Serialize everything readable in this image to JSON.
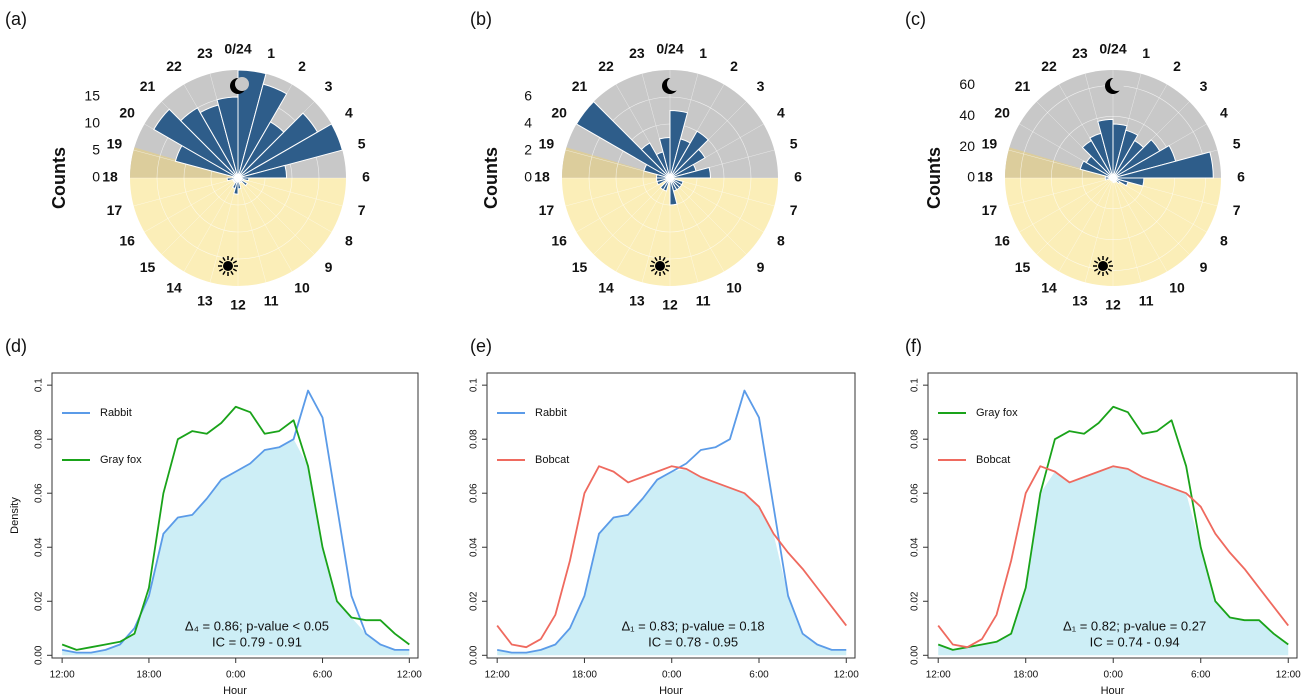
{
  "chart_data": [
    {
      "type": "polar_bar",
      "label": "(a)",
      "ylabel": "Counts",
      "color": "#2e5d8a",
      "categories": [
        "0/24",
        "1",
        "2",
        "3",
        "4",
        "5",
        "6",
        "7",
        "8",
        "9",
        "10",
        "11",
        "12",
        "13",
        "14",
        "15",
        "16",
        "17",
        "18",
        "19",
        "20",
        "21",
        "22",
        "23"
      ],
      "values": [
        20,
        18,
        12,
        17,
        20,
        9,
        2,
        1,
        2,
        1,
        0,
        2,
        3,
        2,
        1,
        1,
        1,
        2,
        1,
        12,
        18,
        15,
        14,
        15
      ],
      "ylim": [
        0,
        20
      ],
      "yticks": [
        0,
        5,
        10,
        15
      ]
    },
    {
      "type": "polar_bar",
      "label": "(b)",
      "ylabel": "Counts",
      "color": "#2e5d8a",
      "categories": [
        "0/24",
        "1",
        "2",
        "3",
        "4",
        "5",
        "6",
        "7",
        "8",
        "9",
        "10",
        "11",
        "12",
        "13",
        "14",
        "15",
        "16",
        "17",
        "18",
        "19",
        "20",
        "21",
        "22",
        "23"
      ],
      "values": [
        5,
        3,
        4,
        3,
        2,
        3,
        0,
        1,
        1,
        1,
        1,
        2,
        0,
        1,
        1,
        0,
        1,
        1,
        1,
        2,
        8,
        3,
        2,
        3
      ],
      "ylim": [
        0,
        8
      ],
      "yticks": [
        0,
        2,
        4,
        6
      ]
    },
    {
      "type": "polar_bar",
      "label": "(c)",
      "ylabel": "Counts",
      "color": "#2e5d8a",
      "categories": [
        "0/24",
        "1",
        "2",
        "3",
        "4",
        "5",
        "6",
        "7",
        "8",
        "9",
        "10",
        "11",
        "12",
        "13",
        "14",
        "15",
        "16",
        "17",
        "18",
        "19",
        "20",
        "21",
        "22",
        "23"
      ],
      "values": [
        35,
        32,
        28,
        35,
        42,
        65,
        20,
        10,
        5,
        3,
        2,
        3,
        2,
        2,
        2,
        2,
        2,
        5,
        5,
        22,
        20,
        28,
        30,
        38
      ],
      "ylim": [
        0,
        70
      ],
      "yticks": [
        0,
        20,
        40,
        60
      ]
    },
    {
      "type": "line",
      "label": "(d)",
      "xlabel": "Hour",
      "ylabel": "Density",
      "overlap_color": "#cdeef6",
      "x": [
        -12,
        -11,
        -10,
        -9,
        -8,
        -7,
        -6,
        -5,
        -4,
        -3,
        -2,
        -1,
        0,
        1,
        2,
        3,
        4,
        5,
        6,
        7,
        8,
        9,
        10,
        11,
        12
      ],
      "series": [
        {
          "name": "Rabbit",
          "color": "#5b9be8",
          "values": [
            0.002,
            0.001,
            0.001,
            0.002,
            0.004,
            0.01,
            0.022,
            0.045,
            0.051,
            0.052,
            0.058,
            0.065,
            0.068,
            0.071,
            0.076,
            0.077,
            0.08,
            0.098,
            0.088,
            0.055,
            0.022,
            0.008,
            0.004,
            0.002,
            0.002
          ]
        },
        {
          "name": "Gray fox",
          "color": "#1aa31a",
          "values": [
            0.004,
            0.002,
            0.003,
            0.004,
            0.005,
            0.008,
            0.025,
            0.06,
            0.08,
            0.083,
            0.082,
            0.086,
            0.092,
            0.09,
            0.082,
            0.083,
            0.087,
            0.07,
            0.04,
            0.02,
            0.014,
            0.013,
            0.013,
            0.008,
            0.004
          ]
        }
      ],
      "xlim": [
        -12.7,
        12.6
      ],
      "xticks": [
        {
          "value": -12,
          "label": "12:00"
        },
        {
          "value": -6,
          "label": "18:00"
        },
        {
          "value": 0,
          "label": "0:00"
        },
        {
          "value": 6,
          "label": "6:00"
        },
        {
          "value": 12,
          "label": "12:00"
        }
      ],
      "ylim": [
        -0.001,
        0.1045
      ],
      "yticks": [
        {
          "value": 0,
          "label": "0.00"
        },
        {
          "value": 0.02,
          "label": "0.02"
        },
        {
          "value": 0.04,
          "label": "0.04"
        },
        {
          "value": 0.06,
          "label": "0.06"
        },
        {
          "value": 0.08,
          "label": "0.08"
        },
        0.1
      ],
      "annotation": [
        "Δ₄ = 0.86; p-value < 0.05",
        "IC = 0.79 - 0.91"
      ]
    },
    {
      "type": "line",
      "label": "(e)",
      "xlabel": "Hour",
      "overlap_color": "#cdeef6",
      "x": [
        -12,
        -11,
        -10,
        -9,
        -8,
        -7,
        -6,
        -5,
        -4,
        -3,
        -2,
        -1,
        0,
        1,
        2,
        3,
        4,
        5,
        6,
        7,
        8,
        9,
        10,
        11,
        12
      ],
      "series": [
        {
          "name": "Rabbit",
          "color": "#5b9be8",
          "values": [
            0.002,
            0.001,
            0.001,
            0.002,
            0.004,
            0.01,
            0.022,
            0.045,
            0.051,
            0.052,
            0.058,
            0.065,
            0.068,
            0.071,
            0.076,
            0.077,
            0.08,
            0.098,
            0.088,
            0.055,
            0.022,
            0.008,
            0.004,
            0.002,
            0.002
          ]
        },
        {
          "name": "Bobcat",
          "color": "#ef6a5f",
          "values": [
            0.011,
            0.004,
            0.003,
            0.006,
            0.015,
            0.035,
            0.06,
            0.07,
            0.068,
            0.064,
            0.066,
            0.068,
            0.07,
            0.069,
            0.066,
            0.064,
            0.062,
            0.06,
            0.055,
            0.045,
            0.038,
            0.032,
            0.025,
            0.018,
            0.011
          ]
        }
      ],
      "xlim": [
        -12.7,
        12.6
      ],
      "xticks": [
        {
          "value": -12,
          "label": "12:00"
        },
        {
          "value": -6,
          "label": "18:00"
        },
        {
          "value": 0,
          "label": "0:00"
        },
        {
          "value": 6,
          "label": "6:00"
        },
        {
          "value": 12,
          "label": "12:00"
        }
      ],
      "ylim": [
        -0.001,
        0.1045
      ],
      "yticks": [
        {
          "value": 0,
          "label": "0.00"
        },
        {
          "value": 0.02,
          "label": "0.02"
        },
        {
          "value": 0.04,
          "label": "0.04"
        },
        {
          "value": 0.06,
          "label": "0.06"
        },
        {
          "value": 0.08,
          "label": "0.08"
        },
        0.1
      ],
      "annotation": [
        "Δ₁ = 0.83; p-value = 0.18",
        "IC = 0.78 - 0.95"
      ]
    },
    {
      "type": "line",
      "label": "(f)",
      "xlabel": "Hour",
      "overlap_color": "#cdeef6",
      "x": [
        -12,
        -11,
        -10,
        -9,
        -8,
        -7,
        -6,
        -5,
        -4,
        -3,
        -2,
        -1,
        0,
        1,
        2,
        3,
        4,
        5,
        6,
        7,
        8,
        9,
        10,
        11,
        12
      ],
      "series": [
        {
          "name": "Gray fox",
          "color": "#1aa31a",
          "values": [
            0.004,
            0.002,
            0.003,
            0.004,
            0.005,
            0.008,
            0.025,
            0.06,
            0.08,
            0.083,
            0.082,
            0.086,
            0.092,
            0.09,
            0.082,
            0.083,
            0.087,
            0.07,
            0.04,
            0.02,
            0.014,
            0.013,
            0.013,
            0.008,
            0.004
          ]
        },
        {
          "name": "Bobcat",
          "color": "#ef6a5f",
          "values": [
            0.011,
            0.004,
            0.003,
            0.006,
            0.015,
            0.035,
            0.06,
            0.07,
            0.068,
            0.064,
            0.066,
            0.068,
            0.07,
            0.069,
            0.066,
            0.064,
            0.062,
            0.06,
            0.055,
            0.045,
            0.038,
            0.032,
            0.025,
            0.018,
            0.011
          ]
        }
      ],
      "xlim": [
        -12.7,
        12.6
      ],
      "xticks": [
        {
          "value": -12,
          "label": "12:00"
        },
        {
          "value": -6,
          "label": "18:00"
        },
        {
          "value": 0,
          "label": "0:00"
        },
        {
          "value": 6,
          "label": "6:00"
        },
        {
          "value": 12,
          "label": "12:00"
        }
      ],
      "ylim": [
        -0.001,
        0.1045
      ],
      "yticks": [
        {
          "value": 0,
          "label": "0.00"
        },
        {
          "value": 0.02,
          "label": "0.02"
        },
        {
          "value": 0.04,
          "label": "0.04"
        },
        {
          "value": 0.06,
          "label": "0.06"
        },
        {
          "value": 0.08,
          "label": "0.08"
        },
        0.1
      ],
      "annotation": [
        "Δ₁ = 0.82; p-value = 0.27",
        "IC = 0.74 - 0.94"
      ]
    }
  ]
}
